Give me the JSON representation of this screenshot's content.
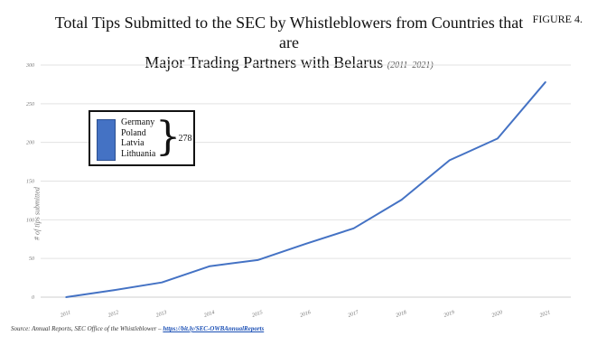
{
  "figure_label": "FIGURE 4.",
  "title": {
    "line1": "Total Tips Submitted to the SEC by Whistleblowers from Countries that are",
    "line2": "Major Trading Partners with Belarus",
    "years": "(2011–2021)"
  },
  "legend": {
    "countries": [
      "Germany",
      "Poland",
      "Latvia",
      "Lithuania"
    ],
    "total_text": "– 278",
    "swatch_color": "#4472c4"
  },
  "source": {
    "text": "Source: Annual Reports, SEC Office of the Whistleblower – ",
    "link_text": "https://bit.ly/SEC-OWBAnnualReports"
  },
  "chart_data": {
    "type": "line",
    "title": "Total Tips Submitted to the SEC by Whistleblowers from Countries that are Major Trading Partners with Belarus (2011–2021)",
    "xlabel": "",
    "ylabel": "# of tips submitted",
    "categories": [
      "2011",
      "2012",
      "2013",
      "2014",
      "2015",
      "2016",
      "2017",
      "2018",
      "2019",
      "2020",
      "2021"
    ],
    "series": [
      {
        "values": [
          0,
          9,
          19,
          40,
          48,
          69,
          89,
          126,
          177,
          205,
          278
        ],
        "color": "#4472c4"
      }
    ],
    "ylim": [
      0,
      300
    ],
    "yticks": [
      0,
      50,
      100,
      150,
      200,
      250,
      300
    ],
    "grid": true,
    "legend_position": "top-left"
  }
}
